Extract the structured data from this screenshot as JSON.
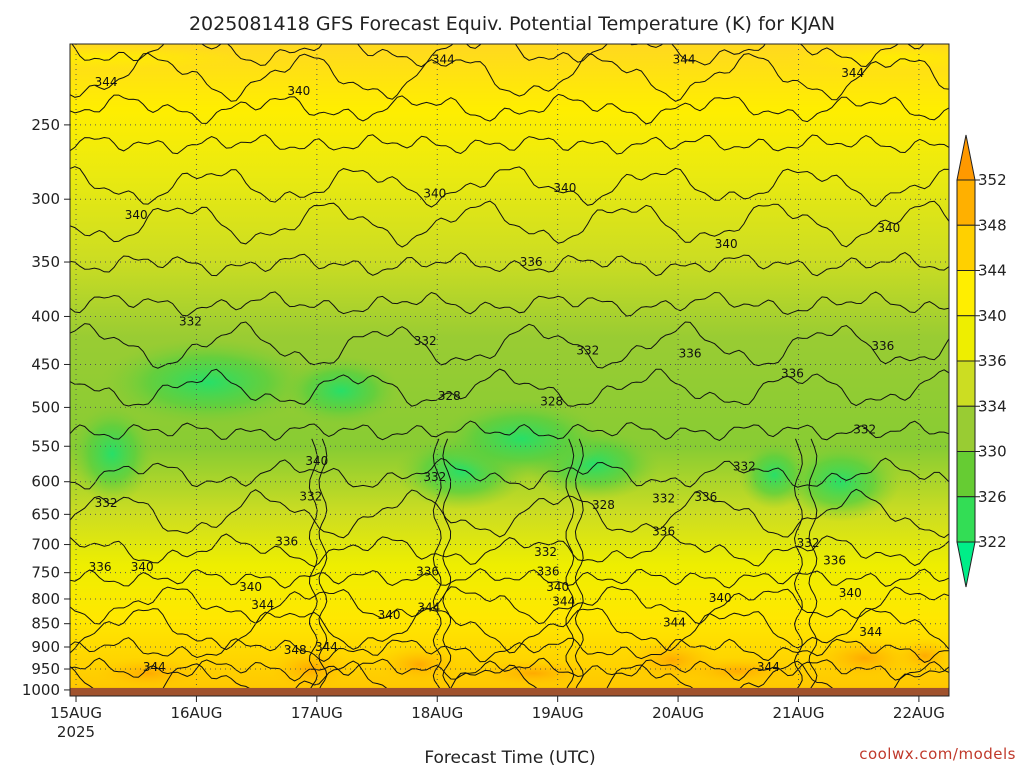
{
  "chart_data": {
    "type": "heatmap",
    "title": "2025081418 GFS Forecast Equiv. Potential Temperature (K) for KJAN",
    "xlabel": "Forecast Time (UTC)",
    "ylabel": "",
    "credit": "coolwx.com/models",
    "x_ticks": [
      {
        "label": "15AUG",
        "sublabel": "2025",
        "day": 0
      },
      {
        "label": "16AUG",
        "sublabel": "",
        "day": 1
      },
      {
        "label": "17AUG",
        "sublabel": "",
        "day": 2
      },
      {
        "label": "18AUG",
        "sublabel": "",
        "day": 3
      },
      {
        "label": "19AUG",
        "sublabel": "",
        "day": 4
      },
      {
        "label": "20AUG",
        "sublabel": "",
        "day": 5
      },
      {
        "label": "21AUG",
        "sublabel": "",
        "day": 6
      },
      {
        "label": "22AUG",
        "sublabel": "",
        "day": 7
      }
    ],
    "xlim": [
      -0.05,
      7.25
    ],
    "y_ticks": [
      250,
      300,
      350,
      400,
      450,
      500,
      550,
      600,
      650,
      700,
      750,
      800,
      850,
      900,
      950,
      1000
    ],
    "ylim": [
      205,
      1015
    ],
    "y_scale": "log",
    "y_direction": "pressure decreasing upward",
    "surface_pressure": 1000,
    "surface_color": "#a0522d",
    "grid": true,
    "colorbar": {
      "levels": [
        322,
        326,
        330,
        334,
        336,
        340,
        344,
        348,
        352
      ],
      "colors": [
        "#00ee88",
        "#33dd55",
        "#66cc33",
        "#99cc33",
        "#ccdd22",
        "#eeee00",
        "#ffee00",
        "#ffd000",
        "#ffb000",
        "#ff9900"
      ],
      "extend": "both"
    },
    "contour_labels": [
      {
        "text": "344",
        "day": 0.25,
        "p": 225
      },
      {
        "text": "340",
        "day": 1.85,
        "p": 230
      },
      {
        "text": "344",
        "day": 3.05,
        "p": 213
      },
      {
        "text": "344",
        "day": 5.05,
        "p": 213
      },
      {
        "text": "344",
        "day": 6.45,
        "p": 220
      },
      {
        "text": "340",
        "day": 0.5,
        "p": 312
      },
      {
        "text": "340",
        "day": 2.98,
        "p": 296
      },
      {
        "text": "340",
        "day": 4.06,
        "p": 292
      },
      {
        "text": "340",
        "day": 6.75,
        "p": 322
      },
      {
        "text": "340",
        "day": 5.4,
        "p": 335
      },
      {
        "text": "336",
        "day": 3.78,
        "p": 350
      },
      {
        "text": "332",
        "day": 0.95,
        "p": 405
      },
      {
        "text": "332",
        "day": 2.9,
        "p": 425
      },
      {
        "text": "332",
        "day": 4.25,
        "p": 435
      },
      {
        "text": "336",
        "day": 5.1,
        "p": 438
      },
      {
        "text": "336",
        "day": 6.7,
        "p": 430
      },
      {
        "text": "336",
        "day": 5.95,
        "p": 460
      },
      {
        "text": "328",
        "day": 3.1,
        "p": 486
      },
      {
        "text": "328",
        "day": 3.95,
        "p": 493
      },
      {
        "text": "332",
        "day": 6.55,
        "p": 528
      },
      {
        "text": "340",
        "day": 2.0,
        "p": 570
      },
      {
        "text": "332",
        "day": 5.55,
        "p": 578
      },
      {
        "text": "332",
        "day": 2.98,
        "p": 593
      },
      {
        "text": "332",
        "day": 1.95,
        "p": 622
      },
      {
        "text": "332",
        "day": 4.88,
        "p": 625
      },
      {
        "text": "336",
        "day": 5.23,
        "p": 623
      },
      {
        "text": "332",
        "day": 0.25,
        "p": 632
      },
      {
        "text": "328",
        "day": 4.38,
        "p": 635
      },
      {
        "text": "336",
        "day": 1.75,
        "p": 695
      },
      {
        "text": "336",
        "day": 4.88,
        "p": 678
      },
      {
        "text": "332",
        "day": 6.08,
        "p": 697
      },
      {
        "text": "332",
        "day": 3.9,
        "p": 713
      },
      {
        "text": "336",
        "day": 6.3,
        "p": 728
      },
      {
        "text": "336",
        "day": 0.2,
        "p": 740
      },
      {
        "text": "340",
        "day": 0.55,
        "p": 740
      },
      {
        "text": "336",
        "day": 2.92,
        "p": 748
      },
      {
        "text": "336",
        "day": 3.92,
        "p": 748
      },
      {
        "text": "340",
        "day": 1.45,
        "p": 777
      },
      {
        "text": "340",
        "day": 4.0,
        "p": 777
      },
      {
        "text": "340",
        "day": 5.35,
        "p": 798
      },
      {
        "text": "340",
        "day": 6.43,
        "p": 788
      },
      {
        "text": "344",
        "day": 1.55,
        "p": 812
      },
      {
        "text": "344",
        "day": 4.05,
        "p": 805
      },
      {
        "text": "340",
        "day": 2.6,
        "p": 832
      },
      {
        "text": "344",
        "day": 2.93,
        "p": 817
      },
      {
        "text": "344",
        "day": 4.97,
        "p": 848
      },
      {
        "text": "344",
        "day": 6.6,
        "p": 868
      },
      {
        "text": "348",
        "day": 1.82,
        "p": 907
      },
      {
        "text": "344",
        "day": 2.08,
        "p": 900
      },
      {
        "text": "344",
        "day": 0.65,
        "p": 945
      },
      {
        "text": "344",
        "day": 5.75,
        "p": 945
      }
    ]
  }
}
